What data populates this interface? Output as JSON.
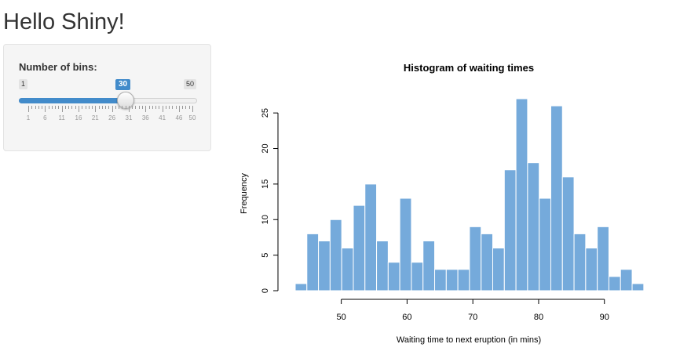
{
  "app_title": "Hello Shiny!",
  "slider": {
    "label": "Number of bins:",
    "min_label": "1",
    "max_label": "50",
    "value_label": "30",
    "value": 30,
    "min": 1,
    "max": 50,
    "tick_labels": [
      "1",
      "6",
      "11",
      "16",
      "21",
      "26",
      "31",
      "36",
      "41",
      "46",
      "50"
    ],
    "accent_color": "#428bca"
  },
  "chart_data": {
    "type": "bar",
    "title": "Histogram of waiting times",
    "xlabel": "Waiting time to next eruption (in mins)",
    "ylabel": "Frequency",
    "bin_width": 1.766,
    "x_start": 43,
    "values": [
      1,
      8,
      7,
      10,
      6,
      12,
      15,
      7,
      4,
      13,
      4,
      7,
      3,
      3,
      3,
      9,
      8,
      6,
      17,
      27,
      18,
      13,
      26,
      16,
      8,
      6,
      9,
      2,
      3,
      1
    ],
    "xlim": [
      43,
      96
    ],
    "ylim": [
      0,
      27
    ],
    "x_ticks": [
      "50",
      "60",
      "70",
      "80",
      "90"
    ],
    "y_ticks": [
      "0",
      "5",
      "10",
      "15",
      "20",
      "25"
    ],
    "bar_color": "#75aadb",
    "grid": false
  }
}
